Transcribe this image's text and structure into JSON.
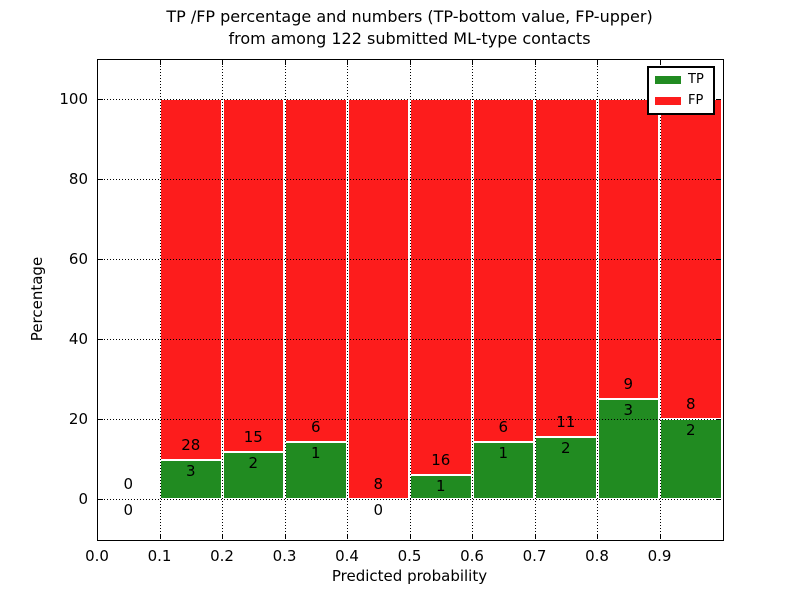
{
  "title": {
    "line1": "TP /FP percentage and numbers (TP-bottom value, FP-upper)",
    "line2": "from among 122 submitted ML-type contacts"
  },
  "chart_data": {
    "type": "bar",
    "stacked": true,
    "title": "TP /FP percentage and numbers (TP-bottom value, FP-upper)\nfrom among 122 submitted ML-type contacts",
    "title_lines": [
      "TP /FP percentage and numbers (TP-bottom value, FP-upper)",
      "from among 122 submitted ML-type contacts"
    ],
    "xlabel": "Predicted probability",
    "ylabel": "Percentage",
    "xlim": [
      0.0,
      1.0
    ],
    "ylim": [
      -10,
      110
    ],
    "xticks": [
      "0.0",
      "0.1",
      "0.2",
      "0.3",
      "0.4",
      "0.5",
      "0.6",
      "0.7",
      "0.8",
      "0.9"
    ],
    "yticks": [
      "0",
      "20",
      "40",
      "60",
      "80",
      "100"
    ],
    "grid": "dotted",
    "grid_color": "#000000",
    "bar_edge_color": "#ffffff",
    "legend_position": "upper right",
    "total_contacts": 122,
    "label_rule": "FP count above TP/FP boundary, TP count below",
    "series": [
      {
        "name": "TP",
        "color": "#218b21"
      },
      {
        "name": "FP",
        "color": "#fd1c1c"
      }
    ],
    "bins": [
      {
        "range": "0.0-0.1",
        "x_start": 0.0,
        "tp": 0,
        "fp": 0,
        "tp_pct": 0,
        "fp_pct": 0
      },
      {
        "range": "0.1-0.2",
        "x_start": 0.1,
        "tp": 3,
        "fp": 28,
        "tp_pct": 9.68,
        "fp_pct": 90.32
      },
      {
        "range": "0.2-0.3",
        "x_start": 0.2,
        "tp": 2,
        "fp": 15,
        "tp_pct": 11.76,
        "fp_pct": 88.24
      },
      {
        "range": "0.3-0.4",
        "x_start": 0.3,
        "tp": 1,
        "fp": 6,
        "tp_pct": 14.29,
        "fp_pct": 85.71
      },
      {
        "range": "0.4-0.5",
        "x_start": 0.4,
        "tp": 0,
        "fp": 8,
        "tp_pct": 0,
        "fp_pct": 100
      },
      {
        "range": "0.5-0.6",
        "x_start": 0.5,
        "tp": 1,
        "fp": 16,
        "tp_pct": 5.88,
        "fp_pct": 94.12
      },
      {
        "range": "0.6-0.7",
        "x_start": 0.6,
        "tp": 1,
        "fp": 6,
        "tp_pct": 14.29,
        "fp_pct": 85.71
      },
      {
        "range": "0.7-0.8",
        "x_start": 0.7,
        "tp": 2,
        "fp": 11,
        "tp_pct": 15.38,
        "fp_pct": 84.62
      },
      {
        "range": "0.8-0.9",
        "x_start": 0.8,
        "tp": 3,
        "fp": 9,
        "tp_pct": 25.0,
        "fp_pct": 75.0
      },
      {
        "range": "0.9-1.0",
        "x_start": 0.9,
        "tp": 2,
        "fp": 8,
        "tp_pct": 20.0,
        "fp_pct": 80.0
      }
    ]
  }
}
